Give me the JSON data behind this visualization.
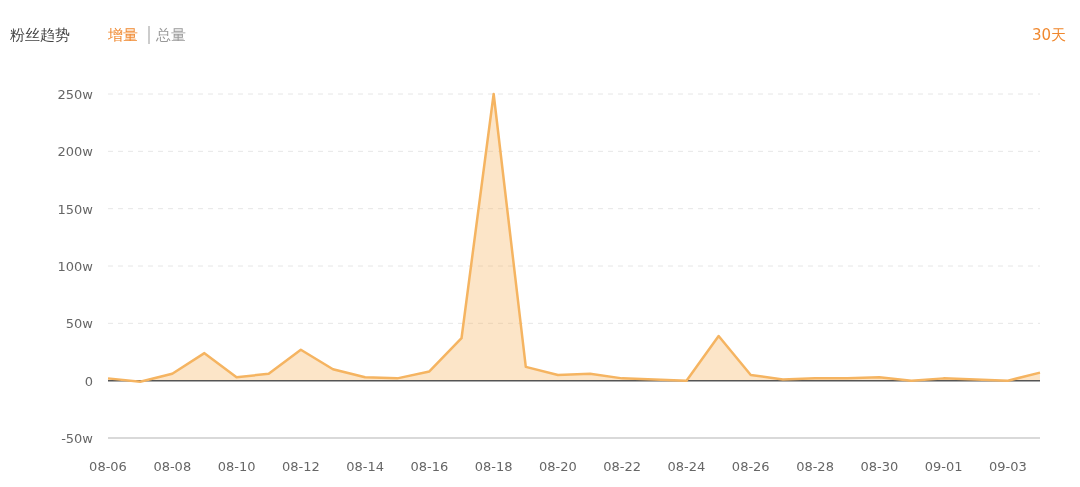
{
  "chart_data": {
    "type": "area",
    "title": "粉丝趋势",
    "annotations": [
      "增量",
      "总量",
      "30天"
    ],
    "categories": [
      "08-06",
      null,
      "08-08",
      null,
      "08-10",
      null,
      "08-12",
      null,
      "08-14",
      null,
      "08-16",
      null,
      "08-18",
      null,
      "08-20",
      null,
      "08-22",
      null,
      "08-24",
      null,
      "08-26",
      null,
      "08-28",
      null,
      "08-30",
      null,
      "09-01",
      null,
      "09-03",
      null
    ],
    "values": [
      2,
      -1,
      6,
      24,
      3,
      6,
      27,
      10,
      3,
      2,
      8,
      37,
      250,
      12,
      5,
      6,
      2,
      1,
      0,
      39,
      5,
      1,
      2,
      2,
      3,
      0,
      2,
      1,
      0,
      7
    ],
    "color": "#f5b461",
    "ylim": [
      -50,
      250
    ],
    "yticks": [
      {
        "value": -50,
        "label": "-50w"
      },
      0,
      {
        "value": 50,
        "label": "50w"
      },
      {
        "value": 100,
        "label": "100w"
      },
      {
        "value": 150,
        "label": "150w"
      },
      {
        "value": 200,
        "label": "200w"
      },
      {
        "value": 250,
        "label": "250w"
      }
    ],
    "grid": "y"
  }
}
